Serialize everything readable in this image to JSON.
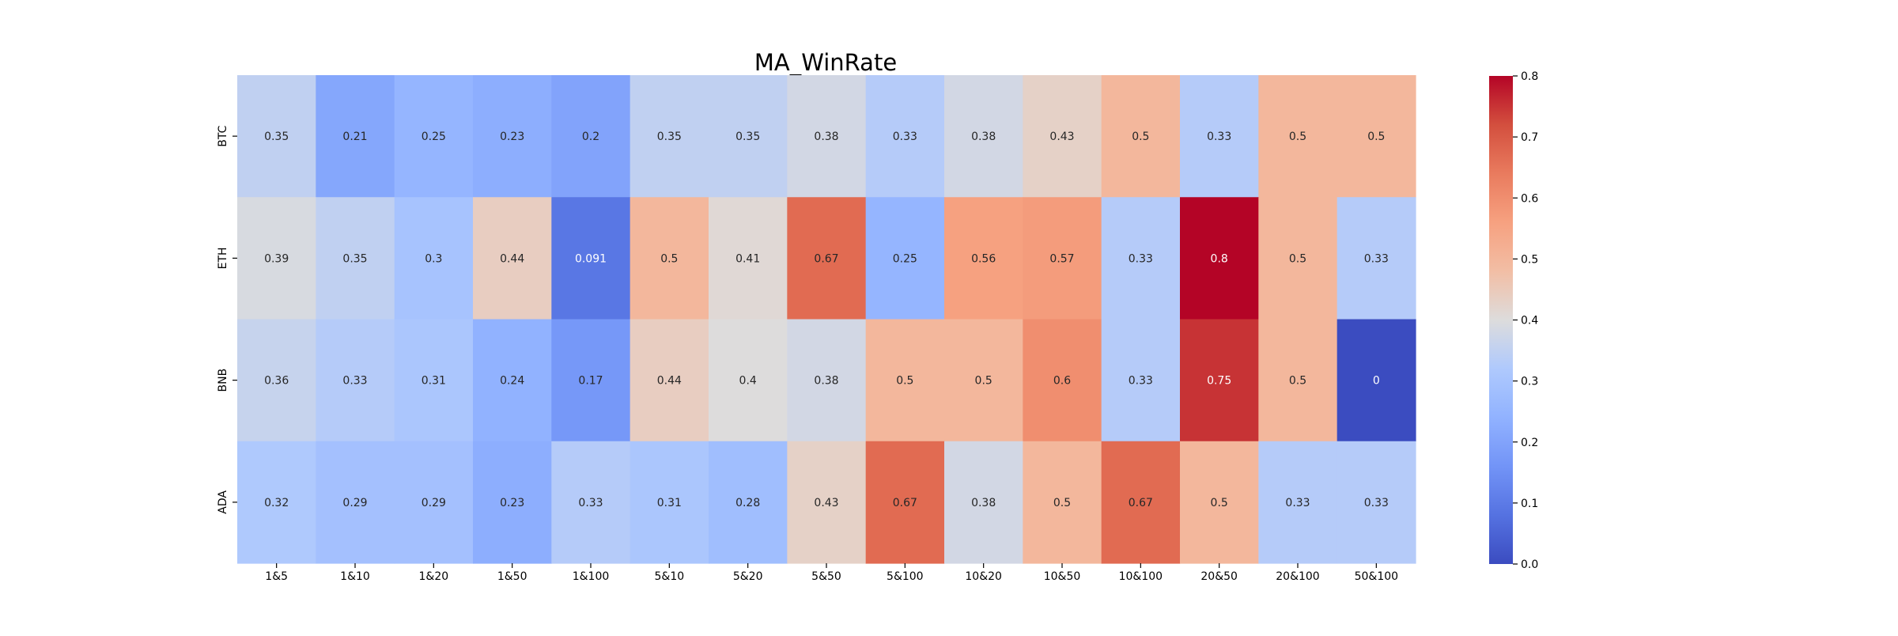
{
  "chart_data": {
    "type": "heatmap",
    "title": "MA_WinRate",
    "xlabel": "",
    "ylabel": "",
    "x_categories": [
      "1&5",
      "1&10",
      "1&20",
      "1&50",
      "1&100",
      "5&10",
      "5&20",
      "5&50",
      "5&100",
      "10&20",
      "10&50",
      "10&100",
      "20&50",
      "20&100",
      "50&100"
    ],
    "y_categories": [
      "BTC",
      "ETH",
      "BNB",
      "ADA"
    ],
    "values": [
      [
        0.35,
        0.21,
        0.25,
        0.23,
        0.2,
        0.35,
        0.35,
        0.38,
        0.33,
        0.38,
        0.43,
        0.5,
        0.33,
        0.5,
        0.5
      ],
      [
        0.39,
        0.35,
        0.3,
        0.44,
        0.091,
        0.5,
        0.41,
        0.67,
        0.25,
        0.56,
        0.57,
        0.33,
        0.8,
        0.5,
        0.33
      ],
      [
        0.36,
        0.33,
        0.31,
        0.24,
        0.17,
        0.44,
        0.4,
        0.38,
        0.5,
        0.5,
        0.6,
        0.33,
        0.75,
        0.5,
        0
      ],
      [
        0.32,
        0.29,
        0.29,
        0.23,
        0.33,
        0.31,
        0.28,
        0.43,
        0.67,
        0.38,
        0.5,
        0.67,
        0.5,
        0.33,
        0.33
      ]
    ],
    "cell_labels": [
      [
        "0.35",
        "0.21",
        "0.25",
        "0.23",
        "0.2",
        "0.35",
        "0.35",
        "0.38",
        "0.33",
        "0.38",
        "0.43",
        "0.5",
        "0.33",
        "0.5",
        "0.5"
      ],
      [
        "0.39",
        "0.35",
        "0.3",
        "0.44",
        "0.091",
        "0.5",
        "0.41",
        "0.67",
        "0.25",
        "0.56",
        "0.57",
        "0.33",
        "0.8",
        "0.5",
        "0.33"
      ],
      [
        "0.36",
        "0.33",
        "0.31",
        "0.24",
        "0.17",
        "0.44",
        "0.4",
        "0.38",
        "0.5",
        "0.5",
        "0.6",
        "0.33",
        "0.75",
        "0.5",
        "0"
      ],
      [
        "0.32",
        "0.29",
        "0.29",
        "0.23",
        "0.33",
        "0.31",
        "0.28",
        "0.43",
        "0.67",
        "0.38",
        "0.5",
        "0.67",
        "0.5",
        "0.33",
        "0.33"
      ]
    ],
    "colormap": "coolwarm",
    "color_range": [
      0,
      0.8
    ],
    "colorbar_ticks": [
      "0.0",
      "0.1",
      "0.2",
      "0.3",
      "0.4",
      "0.5",
      "0.6",
      "0.7",
      "0.8"
    ],
    "colorbar_placement": "right",
    "grid": false,
    "colors": {
      "low": "#3b4cc0",
      "mid": "#dddcdc",
      "high": "#b40426",
      "text_dark": "#262626",
      "text_light": "#ffffff"
    }
  }
}
